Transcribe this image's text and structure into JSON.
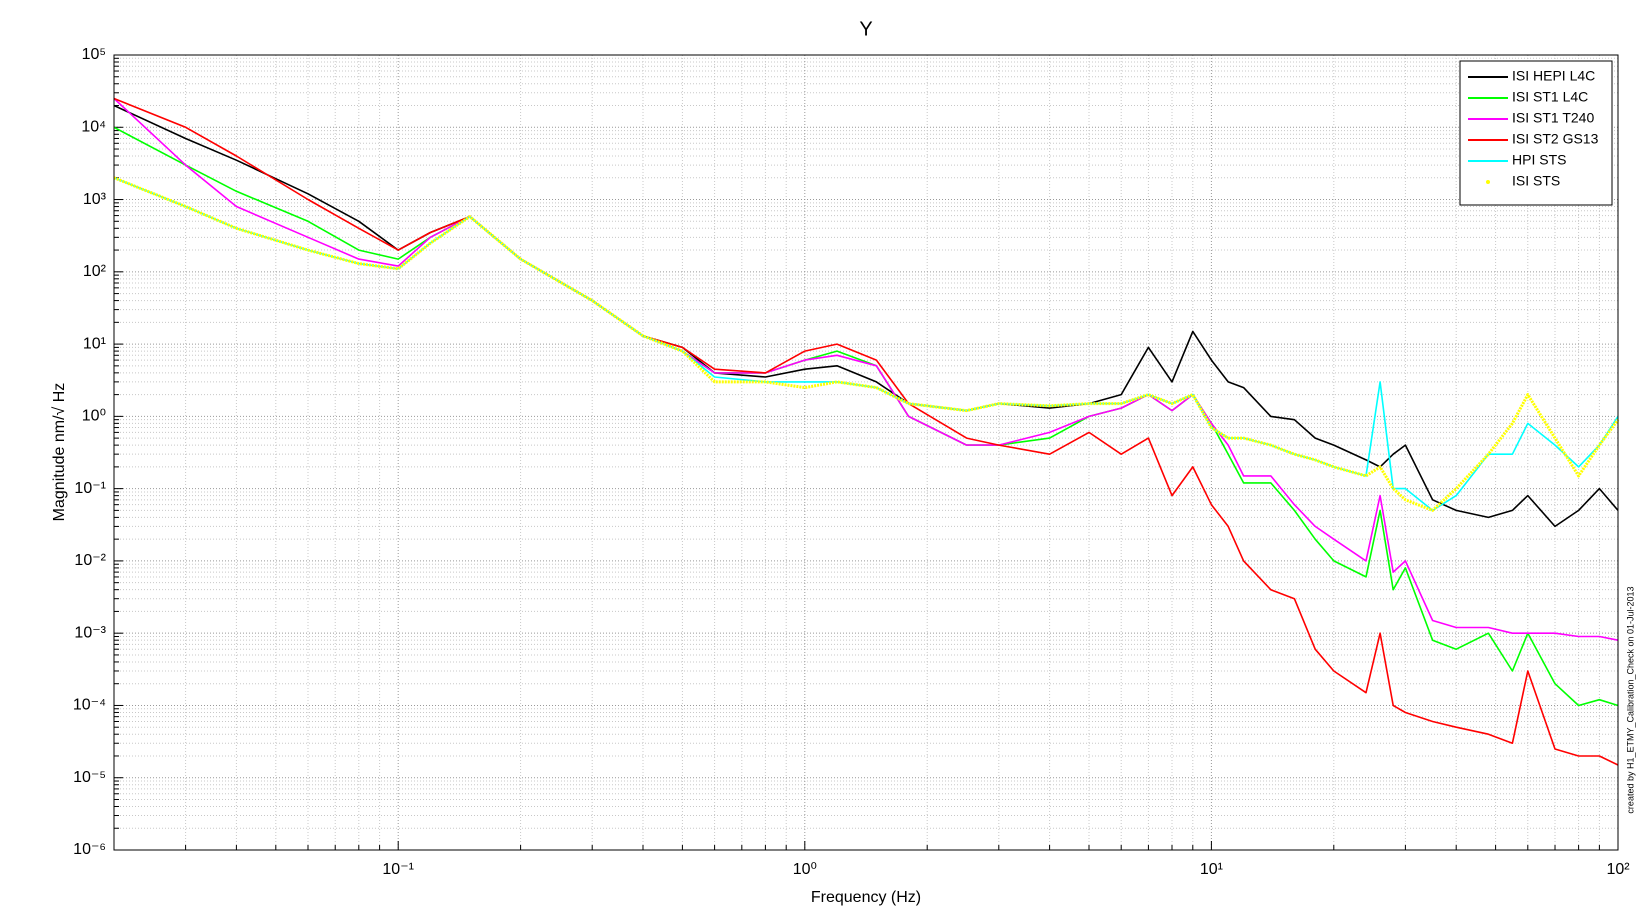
{
  "chart_data": {
    "type": "line",
    "title": "Y",
    "x_label": "Frequency (Hz)",
    "y_label": "Magnitude nm/√ Hz",
    "annotation": "created by H1_ETMY_Calibration_Check on 01-Jul-2013",
    "x_scale": "log",
    "y_scale": "log",
    "grid": true,
    "minor_grid": true,
    "legend": "northeast",
    "xlim": [
      0.02,
      100
    ],
    "xticks": [
      {
        "value": 0.1,
        "label": "10⁻¹"
      },
      {
        "value": 1,
        "label": "10⁰"
      },
      {
        "value": 10,
        "label": "10¹"
      },
      {
        "value": 100,
        "label": "10²"
      }
    ],
    "ylim": [
      1e-06,
      100000
    ],
    "yticks": [
      {
        "value": 1e-06,
        "label": "10⁻⁶"
      },
      {
        "value": 1e-05,
        "label": "10⁻⁵"
      },
      {
        "value": 0.0001,
        "label": "10⁻⁴"
      },
      {
        "value": 0.001,
        "label": "10⁻³"
      },
      {
        "value": 0.01,
        "label": "10⁻²"
      },
      {
        "value": 0.1,
        "label": "10⁻¹"
      },
      {
        "value": 1,
        "label": "10⁰"
      },
      {
        "value": 10,
        "label": "10¹"
      },
      {
        "value": 100,
        "label": "10²"
      },
      {
        "value": 1000,
        "label": "10³"
      },
      {
        "value": 10000,
        "label": "10⁴"
      },
      {
        "value": 100000,
        "label": "10⁵"
      }
    ],
    "x": [
      0.02,
      0.03,
      0.04,
      0.06,
      0.08,
      0.1,
      0.12,
      0.15,
      0.2,
      0.3,
      0.4,
      0.5,
      0.6,
      0.8,
      1,
      1.2,
      1.5,
      1.8,
      2.5,
      3,
      4,
      5,
      6,
      7,
      8,
      9,
      10,
      11,
      12,
      14,
      16,
      18,
      20,
      24,
      26,
      28,
      30,
      35,
      40,
      48,
      55,
      60,
      70,
      80,
      90,
      100
    ],
    "series": [
      {
        "name": "ISI HEPI L4C",
        "color": "#000000",
        "values": [
          20000,
          7000,
          3500,
          1200,
          500,
          200,
          350,
          580,
          150,
          40,
          13,
          9,
          4,
          3.5,
          4.5,
          5,
          3,
          1.5,
          1.2,
          1.5,
          1.3,
          1.5,
          2,
          9,
          3,
          15,
          6,
          3,
          2.5,
          1,
          0.9,
          0.5,
          0.4,
          0.25,
          0.2,
          0.3,
          0.4,
          0.07,
          0.05,
          0.04,
          0.05,
          0.08,
          0.03,
          0.05,
          0.1,
          0.05
        ]
      },
      {
        "name": "ISI ST1 L4C",
        "color": "#00ff00",
        "values": [
          10000,
          3000,
          1300,
          500,
          200,
          150,
          300,
          580,
          150,
          40,
          13,
          8,
          4,
          4,
          6,
          8,
          5,
          1,
          0.4,
          0.4,
          0.5,
          1,
          1.3,
          2,
          1.2,
          2,
          0.8,
          0.3,
          0.12,
          0.12,
          0.05,
          0.02,
          0.01,
          0.006,
          0.05,
          0.004,
          0.008,
          0.0008,
          0.0006,
          0.001,
          0.0003,
          0.001,
          0.0002,
          0.0001,
          0.00012,
          0.0001
        ]
      },
      {
        "name": "ISI ST1 T240",
        "color": "#ff00ff",
        "values": [
          25000,
          3000,
          800,
          300,
          150,
          120,
          300,
          580,
          150,
          40,
          13,
          8,
          4,
          4,
          6,
          7,
          5,
          1,
          0.4,
          0.4,
          0.6,
          1,
          1.3,
          2,
          1.2,
          2,
          0.8,
          0.4,
          0.15,
          0.15,
          0.06,
          0.03,
          0.02,
          0.01,
          0.08,
          0.007,
          0.01,
          0.0015,
          0.0012,
          0.0012,
          0.001,
          0.001,
          0.001,
          0.0009,
          0.0009,
          0.0008
        ]
      },
      {
        "name": "ISI ST2 GS13",
        "color": "#ff0000",
        "values": [
          25000,
          10000,
          4000,
          1000,
          400,
          200,
          350,
          580,
          150,
          40,
          13,
          9,
          4.5,
          4,
          8,
          10,
          6,
          1.5,
          0.5,
          0.4,
          0.3,
          0.6,
          0.3,
          0.5,
          0.08,
          0.2,
          0.06,
          0.03,
          0.01,
          0.004,
          0.003,
          0.0006,
          0.0003,
          0.00015,
          0.001,
          0.0001,
          8e-05,
          6e-05,
          5e-05,
          4e-05,
          3e-05,
          0.0003,
          2.5e-05,
          2e-05,
          2e-05,
          1.5e-05
        ]
      },
      {
        "name": "HPI STS",
        "color": "#00ffff",
        "values": [
          2000,
          800,
          400,
          200,
          130,
          110,
          250,
          580,
          150,
          40,
          13,
          8,
          3.5,
          3,
          3,
          3,
          2.5,
          1.5,
          1.2,
          1.5,
          1.4,
          1.5,
          1.5,
          2,
          1.5,
          2,
          0.7,
          0.5,
          0.5,
          0.4,
          0.3,
          0.25,
          0.2,
          0.15,
          3,
          0.1,
          0.1,
          0.05,
          0.08,
          0.3,
          0.3,
          0.8,
          0.4,
          0.2,
          0.4,
          1
        ]
      },
      {
        "name": "ISI STS",
        "color": "#ffff00",
        "marker": ".",
        "values": [
          2000,
          800,
          400,
          200,
          130,
          110,
          250,
          580,
          150,
          40,
          13,
          8,
          3,
          3,
          2.5,
          3,
          2.5,
          1.5,
          1.2,
          1.5,
          1.4,
          1.5,
          1.5,
          2,
          1.5,
          2,
          0.7,
          0.5,
          0.5,
          0.4,
          0.3,
          0.25,
          0.2,
          0.15,
          0.2,
          0.1,
          0.07,
          0.05,
          0.1,
          0.3,
          0.8,
          2,
          0.5,
          0.15,
          0.4,
          0.9
        ]
      }
    ]
  }
}
